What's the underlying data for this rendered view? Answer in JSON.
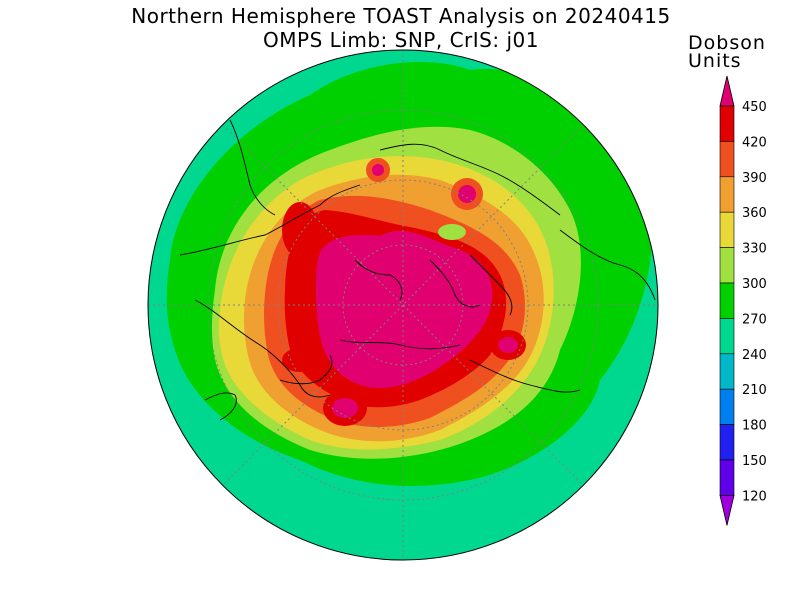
{
  "title": {
    "line1": "Northern Hemisphere TOAST Analysis on 20240415",
    "line2": "OMPS Limb: SNP, CrIS: j01"
  },
  "colorbar": {
    "units_line1": "Dobson",
    "units_line2": "Units",
    "levels": [
      {
        "value": 120,
        "color": "#8000e0"
      },
      {
        "value": 150,
        "color": "#6000e8"
      },
      {
        "value": 180,
        "color": "#2020f0"
      },
      {
        "value": 210,
        "color": "#0080f0"
      },
      {
        "value": 240,
        "color": "#00b8c8"
      },
      {
        "value": 270,
        "color": "#00d890"
      },
      {
        "value": 300,
        "color": "#00d000"
      },
      {
        "value": 330,
        "color": "#a0e040"
      },
      {
        "value": 360,
        "color": "#e8d838"
      },
      {
        "value": 390,
        "color": "#f0a030"
      },
      {
        "value": 420,
        "color": "#f05020"
      },
      {
        "value": 450,
        "color": "#e00000"
      }
    ],
    "top_color": "#e00070",
    "bottom_color": "#a000e0"
  },
  "map": {
    "projection": "north-polar-stereographic",
    "field": "total column ozone"
  }
}
